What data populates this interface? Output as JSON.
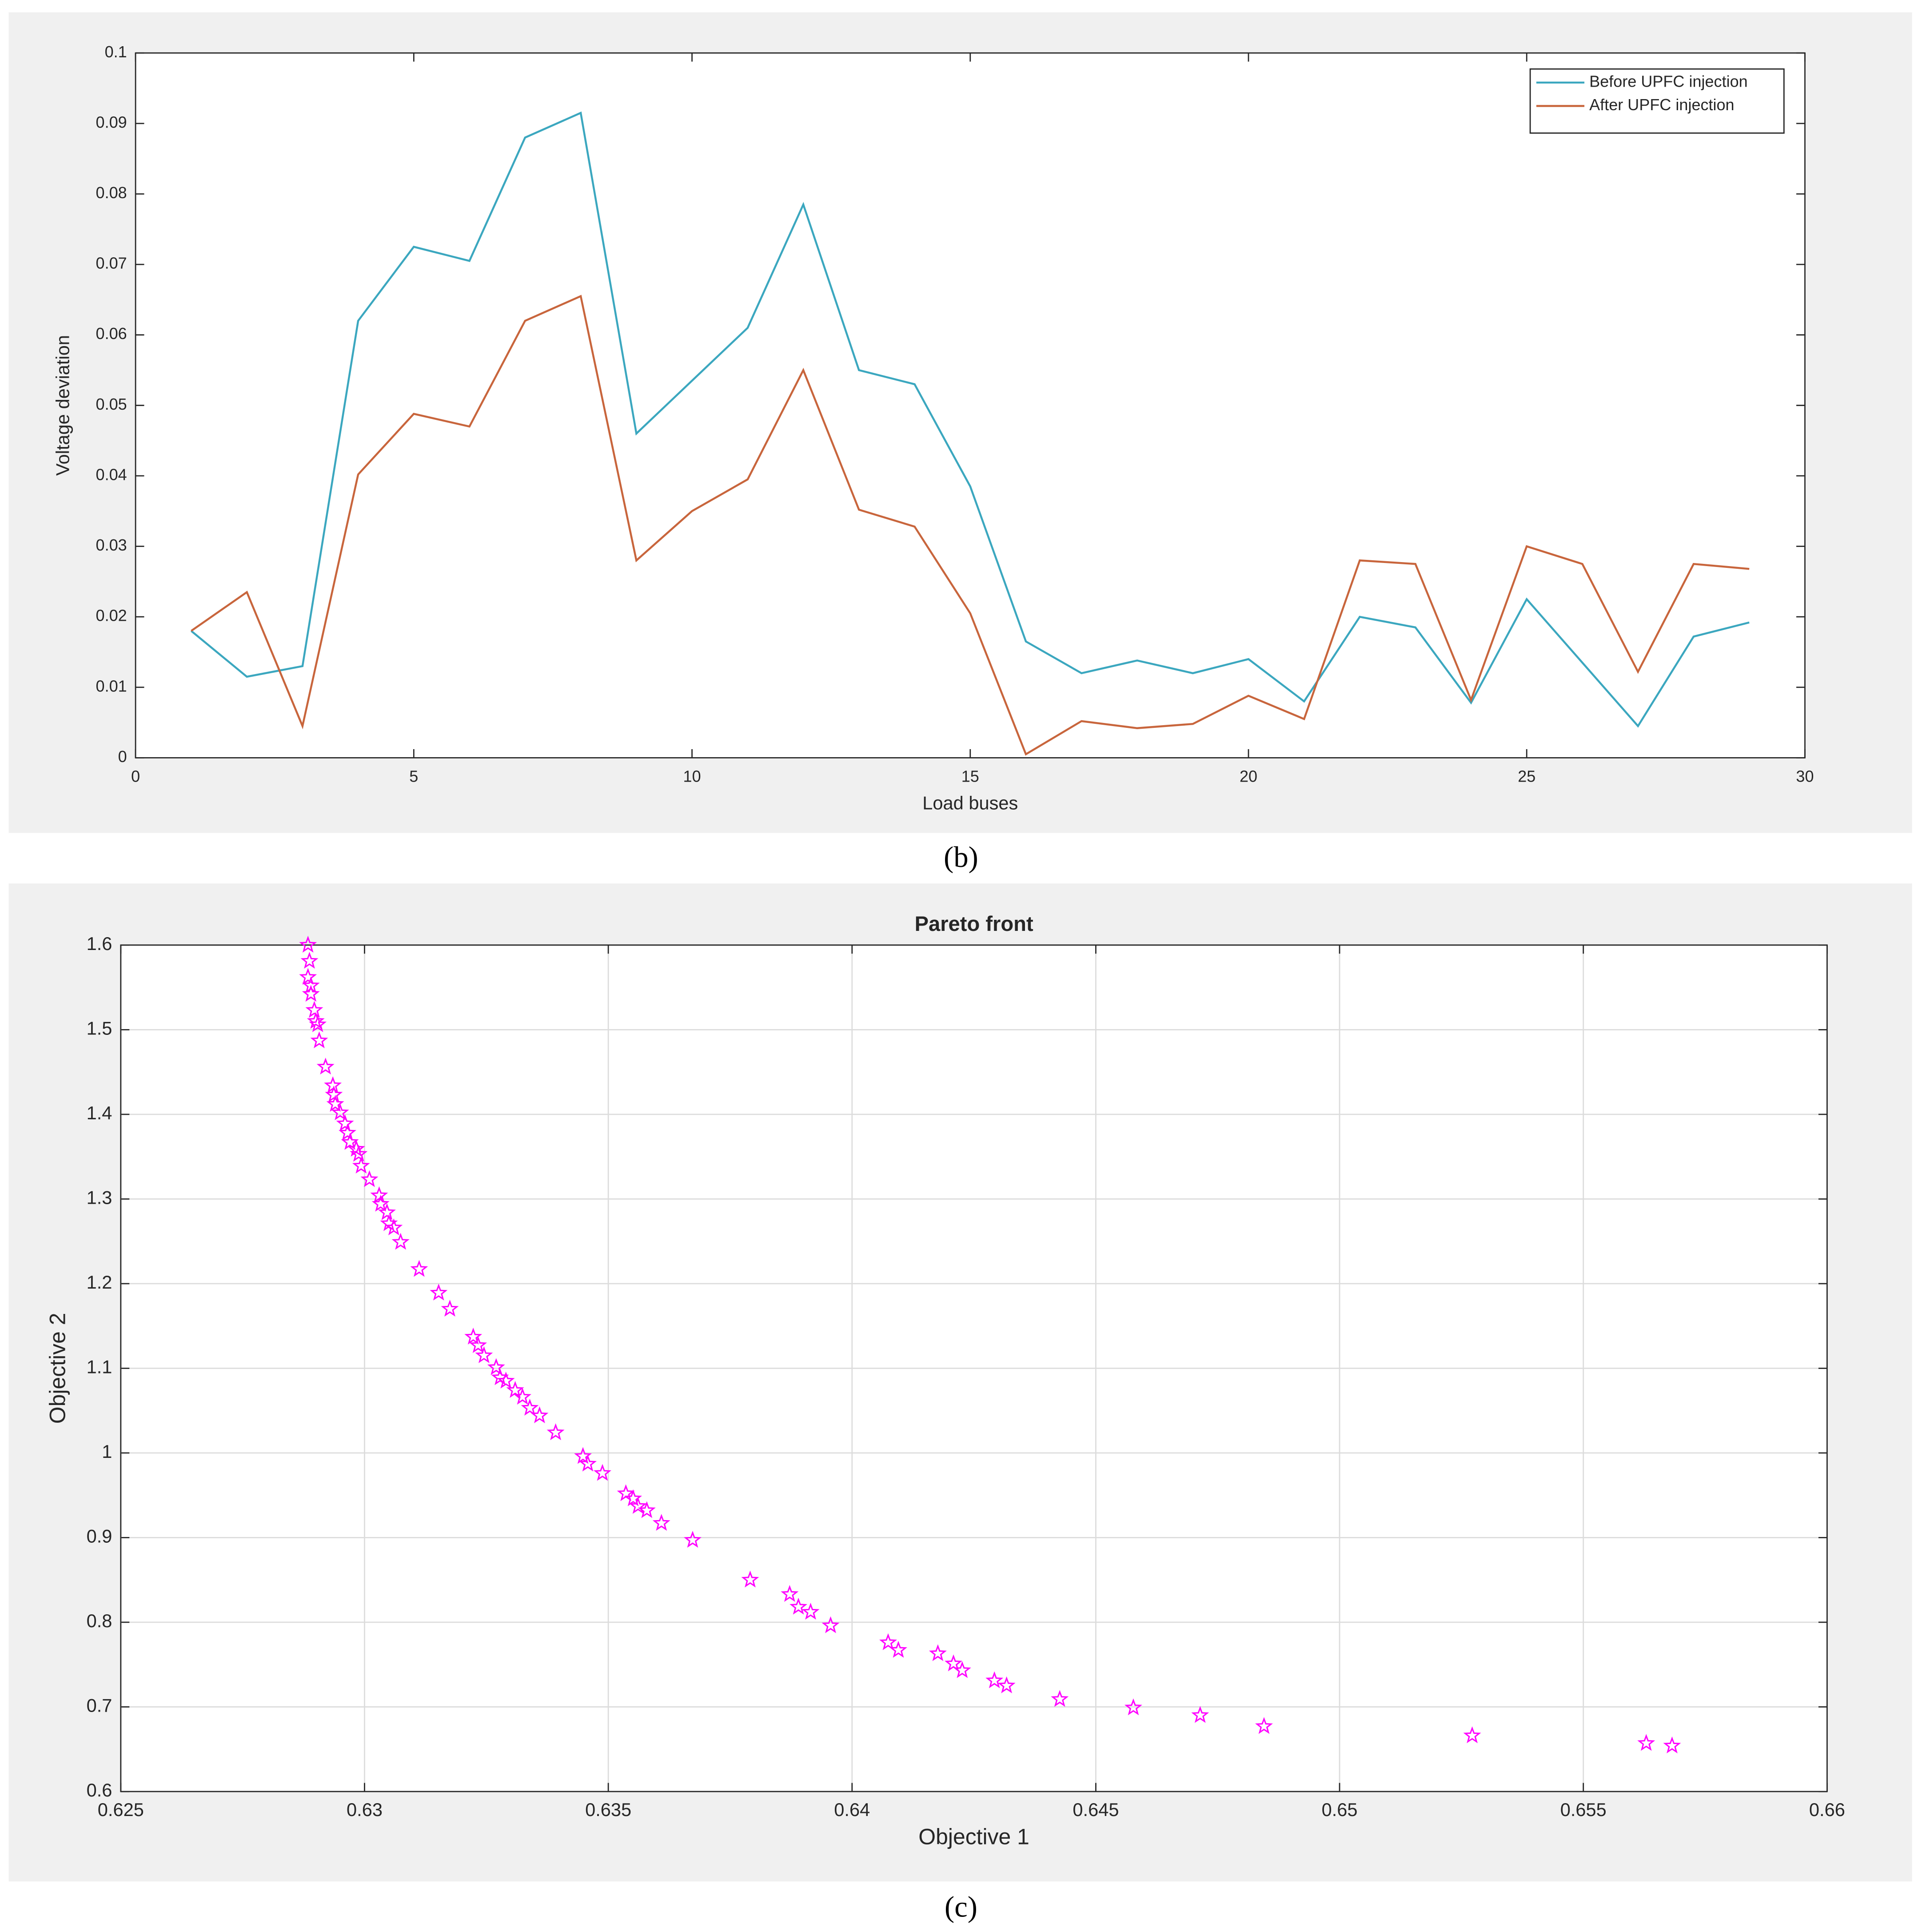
{
  "chart_data": [
    {
      "type": "line",
      "caption": "(b)",
      "x_label": "Load buses",
      "y_label": "Voltage deviation",
      "x": [
        1,
        2,
        3,
        4,
        5,
        6,
        7,
        8,
        9,
        10,
        11,
        12,
        13,
        14,
        15,
        16,
        17,
        18,
        19,
        20,
        21,
        22,
        23,
        24,
        25,
        26,
        27,
        28,
        29
      ],
      "series": [
        {
          "name": "Before UPFC injection",
          "color": "#3ba7bf",
          "values": [
            0.018,
            0.0115,
            0.013,
            0.062,
            0.0725,
            0.0705,
            0.088,
            0.0915,
            0.046,
            0.0535,
            0.061,
            0.0785,
            0.055,
            0.053,
            0.0385,
            0.0165,
            0.012,
            0.0138,
            0.012,
            0.014,
            0.008,
            0.02,
            0.0185,
            0.0078,
            0.0225,
            0.0135,
            0.0045,
            0.0172,
            0.0192
          ]
        },
        {
          "name": "After UPFC injection",
          "color": "#c8653c",
          "values": [
            0.018,
            0.0235,
            0.0045,
            0.0402,
            0.0488,
            0.047,
            0.062,
            0.0655,
            0.028,
            0.035,
            0.0395,
            0.055,
            0.0352,
            0.0328,
            0.0205,
            0.0005,
            0.0052,
            0.0042,
            0.0048,
            0.0088,
            0.0055,
            0.028,
            0.0275,
            0.0082,
            0.03,
            0.0275,
            0.0122,
            0.0275,
            0.0268
          ]
        }
      ],
      "xlim": [
        0,
        30
      ],
      "xticks": [
        0,
        5,
        10,
        15,
        20,
        25,
        30
      ],
      "ylim": [
        0,
        0.1
      ],
      "yticks": [
        0,
        0.01,
        0.02,
        0.03,
        0.04,
        0.05,
        0.06,
        0.07,
        0.08,
        0.09,
        0.1
      ],
      "grid": false,
      "legend": "northeast"
    },
    {
      "type": "scatter",
      "title": "Pareto front",
      "caption": "(c)",
      "x_label": "Objective 1",
      "y_label": "Objective 2",
      "x": [
        0.62884,
        0.62887,
        0.62884,
        0.6289,
        0.6289,
        0.62897,
        0.629,
        0.62904,
        0.62907,
        0.6292,
        0.62935,
        0.62937,
        0.6294,
        0.6295,
        0.6296,
        0.62965,
        0.6297,
        0.62983,
        0.62988,
        0.62993,
        0.6301,
        0.6303,
        0.63033,
        0.63046,
        0.6305,
        0.6306,
        0.63074,
        0.63112,
        0.63152,
        0.63175,
        0.63223,
        0.63233,
        0.63245,
        0.6327,
        0.63278,
        0.6329,
        0.63309,
        0.63324,
        0.63339,
        0.63359,
        0.63392,
        0.63448,
        0.63458,
        0.63488,
        0.63536,
        0.63551,
        0.63561,
        0.63579,
        0.63609,
        0.63673,
        0.63791,
        0.63872,
        0.6389,
        0.63915,
        0.63956,
        0.64074,
        0.64095,
        0.64176,
        0.64208,
        0.64226,
        0.64292,
        0.64317,
        0.64426,
        0.64577,
        0.64714,
        0.64845,
        0.65272,
        0.65629,
        0.65682
      ],
      "series": [
        {
          "color": "#ff00ff",
          "values": [
            1.6,
            1.581,
            1.562,
            1.552,
            1.542,
            1.523,
            1.51,
            1.506,
            1.487,
            1.456,
            1.434,
            1.423,
            1.412,
            1.402,
            1.389,
            1.378,
            1.367,
            1.359,
            1.353,
            1.339,
            1.323,
            1.304,
            1.294,
            1.284,
            1.271,
            1.266,
            1.249,
            1.217,
            1.189,
            1.17,
            1.137,
            1.127,
            1.115,
            1.101,
            1.089,
            1.085,
            1.074,
            1.066,
            1.053,
            1.044,
            1.024,
            0.996,
            0.987,
            0.976,
            0.952,
            0.946,
            0.937,
            0.932,
            0.917,
            0.897,
            0.85,
            0.833,
            0.818,
            0.812,
            0.796,
            0.776,
            0.767,
            0.763,
            0.751,
            0.743,
            0.731,
            0.725,
            0.709,
            0.699,
            0.69,
            0.677,
            0.666,
            0.657,
            0.654
          ]
        }
      ],
      "xlim": [
        0.625,
        0.66
      ],
      "xticks": [
        0.625,
        0.63,
        0.635,
        0.64,
        0.645,
        0.65,
        0.655,
        0.66
      ],
      "ylim": [
        0.6,
        1.6
      ],
      "yticks": [
        0.6,
        0.7,
        0.8,
        0.9,
        1,
        1.1,
        1.2,
        1.3,
        1.4,
        1.5,
        1.6
      ],
      "grid": true
    }
  ]
}
